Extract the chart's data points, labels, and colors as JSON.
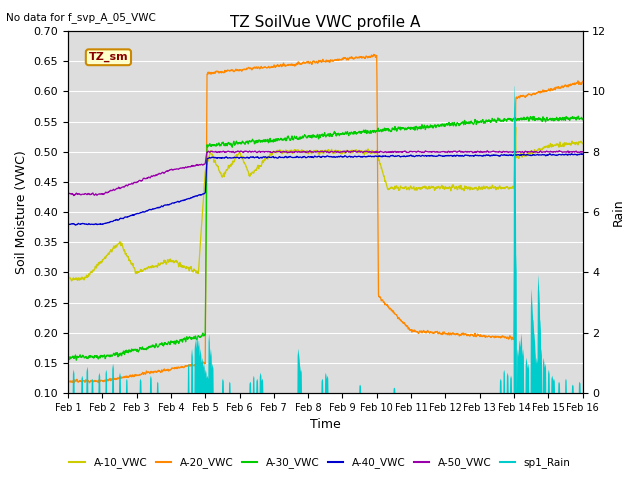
{
  "title": "TZ SoilVue VWC profile A",
  "subtitle": "No data for f_svp_A_05_VWC",
  "xlabel": "Time",
  "ylabel_left": "Soil Moisture (VWC)",
  "ylabel_right": "Rain",
  "ylim_left": [
    0.1,
    0.7
  ],
  "ylim_right": [
    0,
    12
  ],
  "yticks_left": [
    0.1,
    0.15,
    0.2,
    0.25,
    0.3,
    0.35,
    0.4,
    0.45,
    0.5,
    0.55,
    0.6,
    0.65,
    0.7
  ],
  "yticks_right": [
    0,
    2,
    4,
    6,
    8,
    10,
    12
  ],
  "xtick_labels": [
    "Feb 1",
    "Feb 2",
    "Feb 3",
    "Feb 4",
    "Feb 5",
    "Feb 6",
    "Feb 7",
    "Feb 8",
    "Feb 9",
    "Feb 10",
    "Feb 11",
    "Feb 12",
    "Feb 13",
    "Feb 14",
    "Feb 15",
    "Feb 16"
  ],
  "colors": {
    "A10": "#cccc00",
    "A20": "#ff8800",
    "A30": "#00cc00",
    "A40": "#0000cc",
    "A50": "#9900aa",
    "rain": "#00cccc",
    "TZ_sm_bg": "#ffffcc",
    "TZ_sm_border": "#cc8800",
    "TZ_sm_text": "#880000",
    "bg": "#dddddd"
  },
  "legend_labels": [
    "A-10_VWC",
    "A-20_VWC",
    "A-30_VWC",
    "A-40_VWC",
    "A-50_VWC",
    "sp1_Rain"
  ]
}
